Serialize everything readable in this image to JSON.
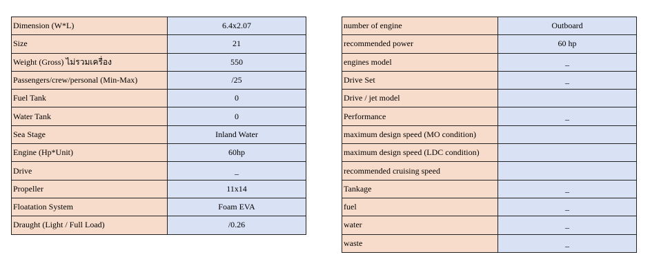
{
  "left_table": {
    "rows": [
      [
        "Dimension (W*L)",
        "6.4x2.07"
      ],
      [
        "Size",
        "21"
      ],
      [
        "Weight (Gross) ไม่รวมเครื่อง",
        "550"
      ],
      [
        "Passengers/crew/personal (Min-Max)",
        "/25"
      ],
      [
        "Fuel Tank",
        "0"
      ],
      [
        "Water Tank",
        "0"
      ],
      [
        "Sea Stage",
        "Inland Water"
      ],
      [
        "Engine (Hp*Unit)",
        "60hp"
      ],
      [
        "Drive",
        "_"
      ],
      [
        "Propeller",
        "11x14"
      ],
      [
        "Floatation System",
        "Foam EVA"
      ],
      [
        "Draught (Light / Full Load)",
        "/0.26"
      ]
    ]
  },
  "right_table": {
    "rows": [
      [
        "number of engine",
        "Outboard"
      ],
      [
        "recommended power",
        "60 hp"
      ],
      [
        "engines model",
        "_"
      ],
      [
        "Drive Set",
        "_"
      ],
      [
        "Drive / jet model"
      ],
      [
        "Performance",
        "_"
      ],
      [
        "maximum design speed (MO condition)"
      ],
      [
        "maximum design speed (LDC condition)"
      ],
      [
        "recommended cruising speed"
      ],
      [
        "Tankage",
        "_"
      ],
      [
        "fuel",
        "_"
      ],
      [
        "water",
        "_"
      ],
      [
        "waste",
        "_"
      ]
    ]
  }
}
